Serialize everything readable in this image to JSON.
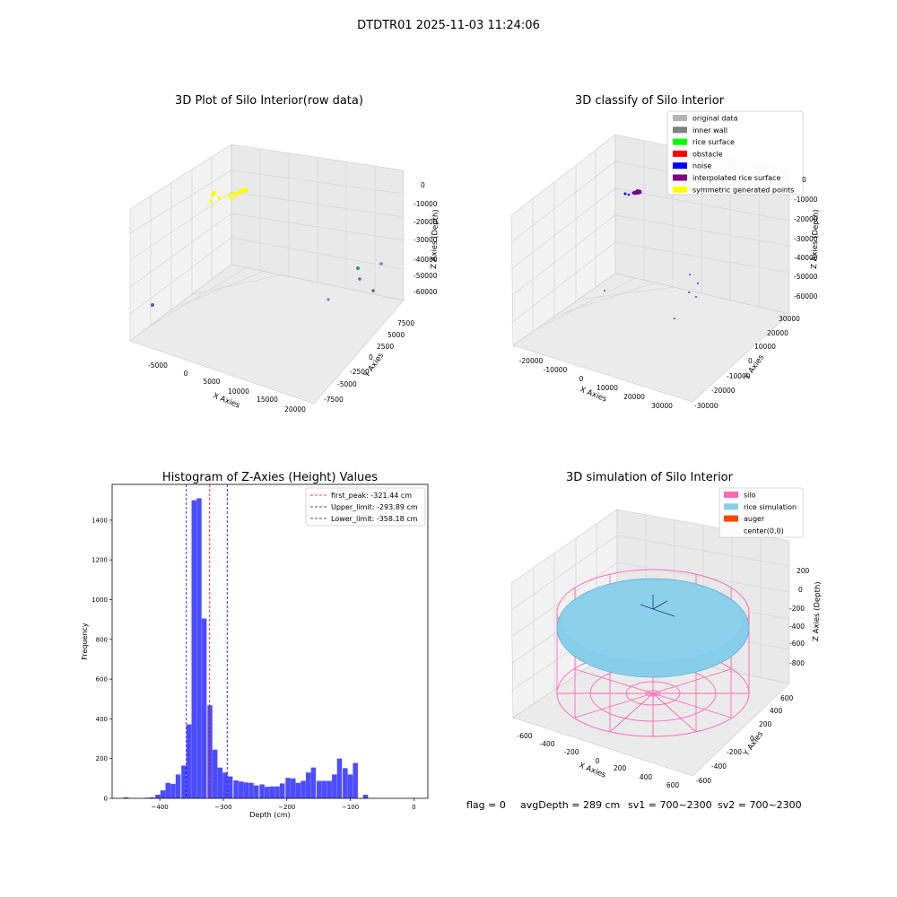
{
  "figure": {
    "suptitle": "DTDTR01 2025-11-03 11:24:06",
    "status": {
      "flag": "flag = 0",
      "avg": "avgDepth = 289 cm",
      "sv1": "sv1 = 700~2300",
      "sv2": "sv2 = 700~2300"
    }
  },
  "colors": {
    "yellow": "#ffff00",
    "purple": "#800080",
    "noise": "#0000ff",
    "hist": "#0000ff",
    "silo": "#ff69b4",
    "rice": "#87ceeb",
    "auger": "#ff4500",
    "pane": "#f2f2f2",
    "grid": "#d0d0d0"
  },
  "chart_data": [
    {
      "type": "scatter3d",
      "title": "3D Plot of Silo Interior(row data)",
      "xlabel": "X Axies",
      "ylabel": "Y Axies",
      "zlabel": "Z Axies (Depth)",
      "xticks": [
        "-5000",
        "0",
        "5000",
        "10000",
        "15000",
        "20000"
      ],
      "yticks": [
        "-7500",
        "-5000",
        "-2500",
        "0",
        "2500",
        "5000",
        "7500"
      ],
      "zticks": [
        "0",
        "-10000",
        "-20000",
        "-30000",
        "-40000",
        "-50000",
        "-60000"
      ]
    },
    {
      "type": "scatter3d",
      "title": "3D classify of Silo Interior",
      "xlabel": "X Axies",
      "ylabel": "Y Axies",
      "zlabel": "Z Axies (Depth)",
      "xticks": [
        "-20000",
        "-10000",
        "0",
        "10000",
        "20000",
        "30000"
      ],
      "yticks": [
        "-30000",
        "-20000",
        "-10000",
        "0",
        "10000",
        "20000",
        "30000"
      ],
      "zticks": [
        "0",
        "-10000",
        "-20000",
        "-30000",
        "-40000",
        "-50000",
        "-60000"
      ],
      "legend": [
        {
          "label": "original data",
          "color": "#b3b3b3"
        },
        {
          "label": "inner wall",
          "color": "#808080"
        },
        {
          "label": "rice surface",
          "color": "#00ff00"
        },
        {
          "label": "obstacle",
          "color": "#ff0000"
        },
        {
          "label": "noise",
          "color": "#0000ff"
        },
        {
          "label": "interpolated rice surface",
          "color": "#800080"
        },
        {
          "label": "symmetric generated points",
          "color": "#ffff00"
        }
      ]
    },
    {
      "type": "bar",
      "title": "Histogram of Z-Axies (Height) Values",
      "xlabel": "Depth (cm)",
      "ylabel": "Frequency",
      "xlim": [
        -475,
        22
      ],
      "ylim": [
        0,
        1580
      ],
      "xticks": [
        -400,
        -300,
        -200,
        -100,
        0
      ],
      "yticks": [
        0,
        200,
        400,
        600,
        800,
        1000,
        1200,
        1400
      ],
      "bin_width": 8.2,
      "bins": [
        [
          -457,
          5
        ],
        [
          -424,
          3
        ],
        [
          -416,
          5
        ],
        [
          -407,
          18
        ],
        [
          -399,
          40
        ],
        [
          -391,
          78
        ],
        [
          -383,
          73
        ],
        [
          -375,
          120
        ],
        [
          -366,
          165
        ],
        [
          -358,
          372
        ],
        [
          -350,
          1500
        ],
        [
          -342,
          1510
        ],
        [
          -334,
          905
        ],
        [
          -325,
          468
        ],
        [
          -317,
          245
        ],
        [
          -309,
          155
        ],
        [
          -301,
          130
        ],
        [
          -293,
          110
        ],
        [
          -284,
          90
        ],
        [
          -276,
          85
        ],
        [
          -268,
          80
        ],
        [
          -260,
          78
        ],
        [
          -252,
          65
        ],
        [
          -243,
          70
        ],
        [
          -235,
          58
        ],
        [
          -227,
          60
        ],
        [
          -219,
          60
        ],
        [
          -211,
          75
        ],
        [
          -202,
          103
        ],
        [
          -194,
          100
        ],
        [
          -186,
          78
        ],
        [
          -178,
          88
        ],
        [
          -170,
          130
        ],
        [
          -162,
          155
        ],
        [
          -153,
          88
        ],
        [
          -145,
          88
        ],
        [
          -137,
          88
        ],
        [
          -129,
          120
        ],
        [
          -121,
          200
        ],
        [
          -112,
          152
        ],
        [
          -104,
          120
        ],
        [
          -96,
          178
        ],
        [
          -88,
          0
        ],
        [
          -80,
          18
        ]
      ],
      "lines": [
        {
          "label": "first_peak: -321.44 cm",
          "x": -321.44,
          "color": "#ff0000"
        },
        {
          "label": "Upper_limit: -293.89 cm",
          "x": -293.89,
          "color": "#0000ff"
        },
        {
          "label": "Lower_limit: -358.18 cm",
          "x": -358.18,
          "color": "#0000ff"
        }
      ]
    },
    {
      "type": "surface3d",
      "title": "3D simulation of Silo Interior",
      "xlabel": "X Axies",
      "ylabel": "Y Axies",
      "zlabel": "Z Axies (Depth)",
      "xticks": [
        "-600",
        "-400",
        "-200",
        "0",
        "200",
        "400",
        "600"
      ],
      "yticks": [
        "-600",
        "-400",
        "-200",
        "0",
        "200",
        "400",
        "600"
      ],
      "zticks": [
        "200",
        "0",
        "-200",
        "-400",
        "-600",
        "-800"
      ],
      "legend": [
        {
          "label": "silo",
          "color": "#ff69b4"
        },
        {
          "label": "rice simulation",
          "color": "#87ceeb"
        },
        {
          "label": "auger",
          "color": "#ff4500"
        },
        {
          "label": "center(0,0)",
          "color": ""
        }
      ]
    }
  ]
}
